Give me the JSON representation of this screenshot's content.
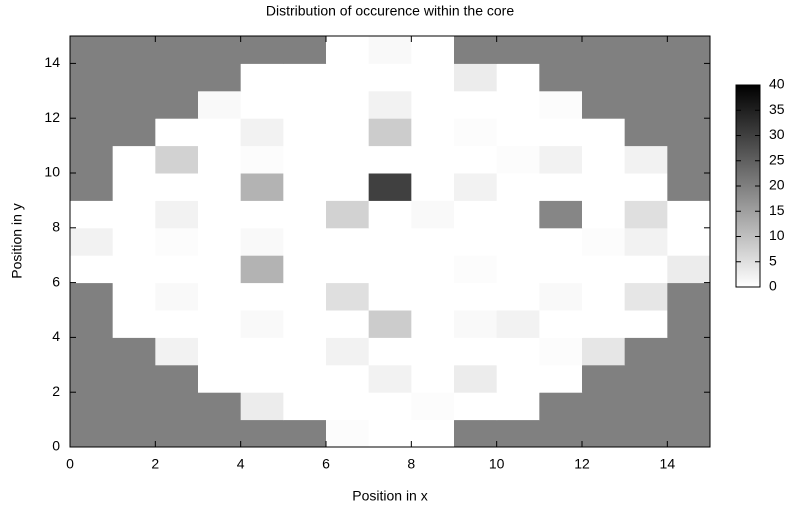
{
  "chart_data": {
    "type": "heatmap",
    "title": "Distribution of occurence within the core",
    "x_label": "Position in x",
    "y_label": "Position in y",
    "xlim": [
      0,
      15
    ],
    "ylim": [
      0,
      15
    ],
    "xticks": [
      0,
      2,
      4,
      6,
      8,
      10,
      12,
      14
    ],
    "yticks": [
      0,
      2,
      4,
      6,
      8,
      10,
      12,
      14
    ],
    "zlim": [
      0,
      40
    ],
    "zticks": [
      0,
      5,
      10,
      15,
      20,
      25,
      30,
      35,
      40
    ],
    "low_color": "#ffffff",
    "high_color": "#000000",
    "nan_color": "#808080",
    "z": [
      [
        null,
        null,
        null,
        null,
        null,
        null,
        0.5,
        0,
        0,
        null,
        null,
        null,
        null,
        null,
        null
      ],
      [
        null,
        null,
        null,
        null,
        3,
        0,
        0,
        0,
        0.5,
        0,
        0,
        null,
        null,
        null,
        null
      ],
      [
        null,
        null,
        null,
        0,
        0,
        0,
        0,
        2,
        0,
        3,
        0,
        0,
        null,
        null,
        null
      ],
      [
        null,
        null,
        2,
        0,
        0,
        0,
        2,
        0,
        0,
        0,
        0,
        0.5,
        4,
        null,
        null
      ],
      [
        null,
        0,
        0,
        0,
        1,
        0,
        0,
        8,
        0,
        1,
        2,
        0,
        0,
        0,
        null
      ],
      [
        null,
        0,
        1,
        0,
        0,
        0,
        5,
        0,
        0,
        0,
        0,
        1,
        0,
        4,
        null
      ],
      [
        0,
        0,
        0,
        0,
        12,
        0,
        0,
        0,
        0,
        0.5,
        0,
        0,
        0,
        0,
        3
      ],
      [
        2,
        0,
        0.5,
        0,
        1,
        0,
        0,
        0,
        0,
        0,
        0,
        0,
        0.5,
        2,
        0
      ],
      [
        0,
        0,
        2,
        0,
        0,
        0,
        7,
        0,
        1,
        0,
        0,
        19,
        0,
        5,
        0
      ],
      [
        null,
        0,
        0,
        0,
        12,
        0,
        0,
        30,
        0,
        2,
        0,
        0,
        0,
        0,
        null
      ],
      [
        null,
        0,
        7,
        0,
        0.5,
        0,
        0,
        0,
        0,
        0,
        0.5,
        2,
        0,
        2,
        null
      ],
      [
        null,
        null,
        0,
        0,
        2,
        0,
        0,
        8,
        0,
        0.5,
        0,
        0,
        0,
        null,
        null
      ],
      [
        null,
        null,
        null,
        1,
        0,
        0,
        0,
        2,
        0,
        0,
        0,
        0.5,
        null,
        null,
        null
      ],
      [
        null,
        null,
        null,
        null,
        0,
        0,
        0,
        0,
        0,
        3,
        0,
        null,
        null,
        null,
        null
      ],
      [
        null,
        null,
        null,
        null,
        null,
        null,
        0,
        1,
        0,
        null,
        null,
        null,
        null,
        null,
        null
      ]
    ]
  }
}
